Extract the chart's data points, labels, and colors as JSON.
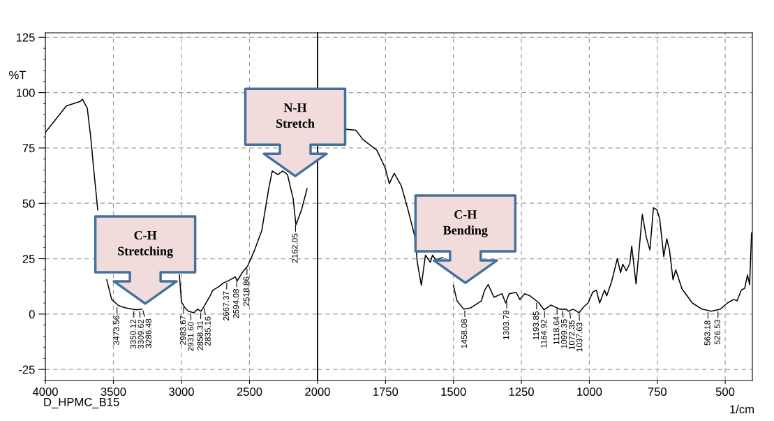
{
  "chart_data": [
    {
      "type": "line",
      "ylabel": "%T",
      "x": [
        4000,
        3923,
        3846,
        3795,
        3744,
        3728,
        3692,
        3667,
        3641,
        3615,
        3579,
        3549,
        3513,
        3462,
        3410,
        3333,
        3290,
        3256,
        3220,
        3150,
        3015,
        3000,
        2974,
        2949,
        2908,
        2882,
        2856,
        2831,
        2795,
        2769,
        2728,
        2692,
        2641,
        2605,
        2590,
        2554,
        2513,
        2462,
        2410,
        2359,
        2333,
        2292,
        2256,
        2221,
        2179,
        2159,
        2118,
        2077
      ],
      "series": [
        {
          "color": "#000000",
          "values": [
            82,
            88,
            94,
            95,
            96,
            97,
            93,
            80,
            63,
            47,
            null,
            15.5,
            6.6,
            3.8,
            2.8,
            1.9,
            2.2,
            null,
            null,
            null,
            17.7,
            5.4,
            2.8,
            1.3,
            0.6,
            2.2,
            1.3,
            3.8,
            7.6,
            10.8,
            12.3,
            14,
            15.5,
            16.8,
            15,
            18.7,
            21.8,
            29,
            37.7,
            56.6,
            64.6,
            63,
            64.6,
            63,
            52,
            40.2,
            47,
            56.6
          ]
        }
      ],
      "xlim": [
        4000,
        2000
      ],
      "xticks": [
        4000,
        3500,
        3000,
        2500,
        2000
      ],
      "ylim": [
        -30,
        127
      ],
      "yticks": [
        -25,
        0,
        25,
        50,
        75,
        100,
        125
      ],
      "grid": true,
      "line_style": "solid",
      "marker": "none",
      "ref_lines": [
        {
          "axis": "x",
          "value": 2000,
          "color": "#000000",
          "line_style": "solid"
        }
      ],
      "annotations": [
        {
          "text": "3473.56",
          "x": 3473.56,
          "y": 3.8
        },
        {
          "text": "3350.12",
          "x": 3350.12,
          "y": 2.1
        },
        {
          "text": "3309.62",
          "x": 3309.62,
          "y": 2.1
        },
        {
          "text": "3286.48",
          "x": 3286.48,
          "y": 2.4
        },
        {
          "text": "2983.67",
          "x": 2983.67,
          "y": 3.8
        },
        {
          "text": "2931.60",
          "x": 2931.6,
          "y": 1
        },
        {
          "text": "2858.31",
          "x": 2858.31,
          "y": 1.4
        },
        {
          "text": "2835.16",
          "x": 2835.16,
          "y": 3.4
        },
        {
          "text": "2667.37",
          "x": 2667.37,
          "y": 14.8
        },
        {
          "text": "2594.08",
          "x": 2594.08,
          "y": 15.9
        },
        {
          "text": "2518.86",
          "x": 2518.86,
          "y": 21.4
        },
        {
          "text": "2162.05",
          "x": 2162.05,
          "y": 40.9
        },
        "C-H\nStretching",
        "N-H\nStretch",
        "D_HPMC_B15"
      ]
    },
    {
      "type": "line",
      "xlabel": "1/cm",
      "x": [
        1897,
        1859,
        1833,
        1782,
        1751,
        1736,
        1718,
        1692,
        1667,
        1641,
        1633,
        1618,
        1603,
        1585,
        1577,
        1564,
        1539,
        1521,
        1500,
        1487,
        1462,
        1436,
        1397,
        1385,
        1372,
        1351,
        1321,
        1308,
        1295,
        1269,
        1256,
        1238,
        1218,
        1185,
        1167,
        1141,
        1108,
        1085,
        1077,
        1059,
        1038,
        1021,
        1005,
        987,
        974,
        962,
        944,
        936,
        918,
        897,
        885,
        877,
        864,
        851,
        844,
        828,
        805,
        790,
        777,
        764,
        751,
        741,
        726,
        715,
        705,
        692,
        682,
        659,
        621,
        585,
        551,
        518,
        492,
        469,
        456,
        441,
        428,
        418,
        410,
        403
      ],
      "series": [
        {
          "color": "#000000",
          "values": [
            83.5,
            83,
            78.8,
            74,
            66,
            58.9,
            63.6,
            58,
            47,
            34.5,
            23.4,
            13,
            26.6,
            23.4,
            26.6,
            24.3,
            25.6,
            null,
            13,
            6,
            2.2,
            2.8,
            6,
            10.8,
            13.3,
            7.6,
            9.2,
            5,
            9.2,
            9.8,
            6.6,
            9.2,
            8.2,
            5,
            1.9,
            4.1,
            2.2,
            2.2,
            1.3,
            2.2,
            0.6,
            3.2,
            5,
            10,
            10.8,
            5,
            10.8,
            8.2,
            14.6,
            25,
            18.7,
            22.5,
            19.6,
            22.8,
            30.7,
            13.6,
            45,
            34.5,
            29,
            48,
            47,
            43,
            26,
            34,
            29,
            15.5,
            20,
            11.4,
            5,
            2.2,
            1.3,
            2.2,
            5,
            6.6,
            6,
            10.8,
            11.7,
            17.7,
            13.3,
            36.7
          ]
        }
      ],
      "xlim": [
        2000,
        400
      ],
      "xticks": [
        1750,
        1500,
        1250,
        1000,
        750,
        500
      ],
      "ylim": [
        -30,
        127
      ],
      "yticks": [
        -25,
        0,
        25,
        50,
        75,
        100,
        125
      ],
      "tick_labels": "x",
      "grid": true,
      "line_style": "solid",
      "marker": "none",
      "annotations": [
        {
          "text": "1458.08",
          "x": 1458.08,
          "y": 2.3
        },
        {
          "text": "1303.79",
          "x": 1303.79,
          "y": 6.2
        },
        {
          "text": "1193.85",
          "x": 1193.85,
          "y": 5.8
        },
        {
          "text": "1164.92",
          "x": 1164.92,
          "y": 2.1
        },
        {
          "text": "1118.64",
          "x": 1118.64,
          "y": 3.4
        },
        {
          "text": "1099.35",
          "x": 1099.35,
          "y": 2.2
        },
        {
          "text": "1072.35",
          "x": 1072.35,
          "y": 1.7
        },
        {
          "text": "1037.63",
          "x": 1037.63,
          "y": 0.7
        },
        {
          "text": "563.18",
          "x": 563.18,
          "y": 1.6
        },
        {
          "text": "526.53",
          "x": 526.53,
          "y": 2
        },
        "C-H\nBending"
      ]
    }
  ]
}
